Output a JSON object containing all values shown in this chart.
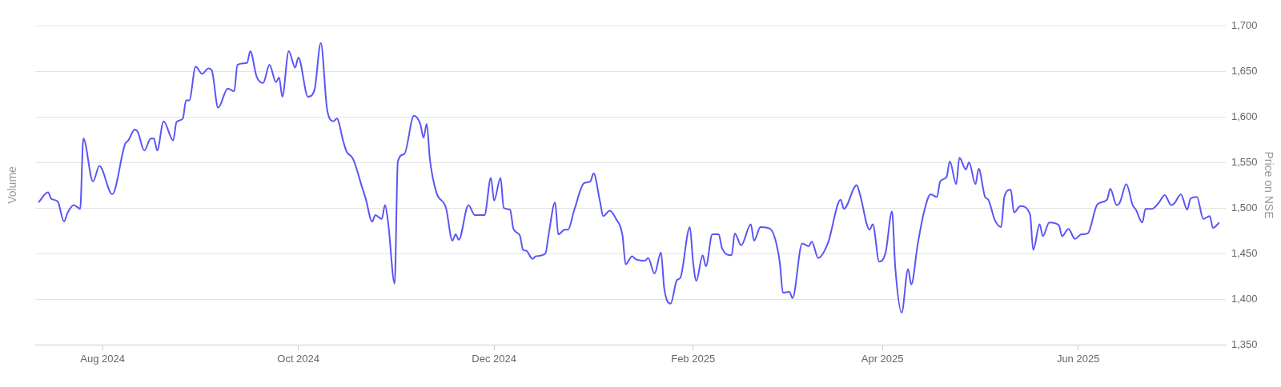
{
  "chart_data": {
    "type": "line",
    "ylabel": "Volume",
    "y2label": "Price on NSE",
    "x": [
      "2024-07-12",
      "2024-07-15",
      "2024-07-16",
      "2024-07-18",
      "2024-07-20",
      "2024-07-21",
      "2024-07-23",
      "2024-07-25",
      "2024-07-26",
      "2024-07-29",
      "2024-07-31",
      "2024-08-04",
      "2024-08-08",
      "2024-08-09",
      "2024-08-11",
      "2024-08-12",
      "2024-08-14",
      "2024-08-16",
      "2024-08-17",
      "2024-08-18",
      "2024-08-20",
      "2024-08-23",
      "2024-08-24",
      "2024-08-26",
      "2024-08-27",
      "2024-08-28",
      "2024-08-30",
      "2024-09-01",
      "2024-09-03",
      "2024-09-04",
      "2024-09-06",
      "2024-09-09",
      "2024-09-11",
      "2024-09-12",
      "2024-09-15",
      "2024-09-16",
      "2024-09-18",
      "2024-09-20",
      "2024-09-22",
      "2024-09-24",
      "2024-09-25",
      "2024-09-26",
      "2024-09-28",
      "2024-09-30",
      "2024-10-01",
      "2024-10-04",
      "2024-10-06",
      "2024-10-08",
      "2024-10-10",
      "2024-10-12",
      "2024-10-13",
      "2024-10-15",
      "2024-10-16",
      "2024-10-18",
      "2024-10-21",
      "2024-10-22",
      "2024-10-24",
      "2024-10-25",
      "2024-10-27",
      "2024-10-28",
      "2024-10-29",
      "2024-10-31",
      "2024-11-01",
      "2024-11-03",
      "2024-11-06",
      "2024-11-08",
      "2024-11-09",
      "2024-11-10",
      "2024-11-11",
      "2024-11-13",
      "2024-11-16",
      "2024-11-18",
      "2024-11-19",
      "2024-11-20",
      "2024-11-23",
      "2024-11-25",
      "2024-11-28",
      "2024-11-30",
      "2024-12-01",
      "2024-12-03",
      "2024-12-04",
      "2024-12-06",
      "2024-12-07",
      "2024-12-09",
      "2024-12-10",
      "2024-12-11",
      "2024-12-13",
      "2024-12-14",
      "2024-12-17",
      "2024-12-18",
      "2024-12-20",
      "2024-12-21",
      "2024-12-23",
      "2024-12-24",
      "2024-12-26",
      "2024-12-29",
      "2024-12-31",
      "2025-01-01",
      "2025-01-03",
      "2025-01-04",
      "2025-01-06",
      "2025-01-08",
      "2025-01-10",
      "2025-01-11",
      "2025-01-13",
      "2025-01-14",
      "2025-01-17",
      "2025-01-18",
      "2025-01-20",
      "2025-01-22",
      "2025-01-23",
      "2025-01-25",
      "2025-01-27",
      "2025-01-28",
      "2025-01-31",
      "2025-02-01",
      "2025-02-02",
      "2025-02-04",
      "2025-02-05",
      "2025-02-07",
      "2025-02-09",
      "2025-02-10",
      "2025-02-13",
      "2025-02-14",
      "2025-02-16",
      "2025-02-19",
      "2025-02-20",
      "2025-02-22",
      "2025-02-25",
      "2025-02-28",
      "2025-03-01",
      "2025-03-03",
      "2025-03-04",
      "2025-03-07",
      "2025-03-09",
      "2025-03-10",
      "2025-03-12",
      "2025-03-15",
      "2025-03-19",
      "2025-03-20",
      "2025-03-24",
      "2025-03-25",
      "2025-03-28",
      "2025-03-29",
      "2025-03-31",
      "2025-04-02",
      "2025-04-04",
      "2025-04-05",
      "2025-04-07",
      "2025-04-09",
      "2025-04-10",
      "2025-04-12",
      "2025-04-14",
      "2025-04-16",
      "2025-04-18",
      "2025-04-19",
      "2025-04-21",
      "2025-04-22",
      "2025-04-24",
      "2025-04-25",
      "2025-04-27",
      "2025-04-28",
      "2025-04-30",
      "2025-05-01",
      "2025-05-03",
      "2025-05-04",
      "2025-05-06",
      "2025-05-08",
      "2025-05-09",
      "2025-05-11",
      "2025-05-12",
      "2025-05-14",
      "2025-05-17",
      "2025-05-18",
      "2025-05-20",
      "2025-05-21",
      "2025-05-23",
      "2025-05-26",
      "2025-05-27",
      "2025-05-29",
      "2025-05-31",
      "2025-06-02",
      "2025-06-04",
      "2025-06-07",
      "2025-06-10",
      "2025-06-11",
      "2025-06-13",
      "2025-06-14",
      "2025-06-16",
      "2025-06-18",
      "2025-06-19",
      "2025-06-21",
      "2025-06-22",
      "2025-06-24",
      "2025-06-26",
      "2025-06-28",
      "2025-06-30",
      "2025-07-01",
      "2025-07-03",
      "2025-07-05",
      "2025-07-06",
      "2025-07-08",
      "2025-07-10",
      "2025-07-12",
      "2025-07-13",
      "2025-07-15"
    ],
    "series": [
      {
        "color": "#5a55f5",
        "axis": "y2",
        "values": [
          1506,
          1517,
          1510,
          1507,
          1485,
          1494,
          1503,
          1499,
          1576,
          1529,
          1546,
          1515,
          1570,
          1574,
          1586,
          1583,
          1563,
          1576,
          1576,
          1563,
          1595,
          1574,
          1594,
          1598,
          1618,
          1618,
          1655,
          1647,
          1653,
          1651,
          1610,
          1631,
          1628,
          1657,
          1659,
          1672,
          1644,
          1637,
          1657,
          1638,
          1643,
          1622,
          1672,
          1654,
          1665,
          1622,
          1629,
          1681,
          1607,
          1595,
          1598,
          1573,
          1562,
          1554,
          1521,
          1510,
          1485,
          1492,
          1488,
          1503,
          1483,
          1417,
          1551,
          1559,
          1601,
          1592,
          1577,
          1592,
          1553,
          1517,
          1500,
          1464,
          1471,
          1465,
          1503,
          1492,
          1492,
          1533,
          1508,
          1533,
          1500,
          1498,
          1477,
          1470,
          1454,
          1453,
          1444,
          1447,
          1450,
          1471,
          1506,
          1471,
          1476,
          1476,
          1498,
          1527,
          1529,
          1538,
          1507,
          1491,
          1497,
          1488,
          1470,
          1438,
          1447,
          1444,
          1442,
          1445,
          1428,
          1451,
          1412,
          1395,
          1421,
          1423,
          1479,
          1441,
          1420,
          1448,
          1436,
          1471,
          1471,
          1456,
          1448,
          1472,
          1459,
          1482,
          1464,
          1479,
          1477,
          1441,
          1407,
          1408,
          1401,
          1461,
          1458,
          1463,
          1445,
          1461,
          1509,
          1499,
          1525,
          1515,
          1476,
          1482,
          1441,
          1451,
          1496,
          1435,
          1385,
          1433,
          1416,
          1460,
          1496,
          1515,
          1512,
          1529,
          1534,
          1551,
          1526,
          1555,
          1542,
          1550,
          1526,
          1543,
          1512,
          1509,
          1487,
          1479,
          1512,
          1520,
          1495,
          1502,
          1493,
          1454,
          1482,
          1469,
          1484,
          1481,
          1469,
          1477,
          1466,
          1471,
          1472,
          1504,
          1509,
          1521,
          1503,
          1506,
          1526,
          1503,
          1498,
          1484,
          1499,
          1499,
          1505,
          1514,
          1503,
          1505,
          1515,
          1498,
          1510,
          1512,
          1488,
          1491,
          1478,
          1484
        ]
      }
    ],
    "xlim": [
      "2024-07-11",
      "2025-07-17"
    ],
    "xticks": [
      {
        "value": "2024-08",
        "label": "Aug 2024"
      },
      {
        "value": "2024-10",
        "label": "Oct 2024"
      },
      {
        "value": "2024-12",
        "label": "Dec 2024"
      },
      {
        "value": "2025-02",
        "label": "Feb 2025"
      },
      {
        "value": "2025-04",
        "label": "Apr 2025"
      },
      {
        "value": "2025-06",
        "label": "Jun 2025"
      }
    ],
    "y2lim": [
      1350,
      1700
    ],
    "y2ticks": [
      {
        "value": 1350,
        "label": "1,350"
      },
      {
        "value": 1400,
        "label": "1,400"
      },
      {
        "value": 1450,
        "label": "1,450"
      },
      {
        "value": 1500,
        "label": "1,500"
      },
      {
        "value": 1550,
        "label": "1,550"
      },
      {
        "value": 1600,
        "label": "1,600"
      },
      {
        "value": 1650,
        "label": "1,650"
      },
      {
        "value": 1700,
        "label": "1,700"
      }
    ],
    "grid": "y"
  }
}
